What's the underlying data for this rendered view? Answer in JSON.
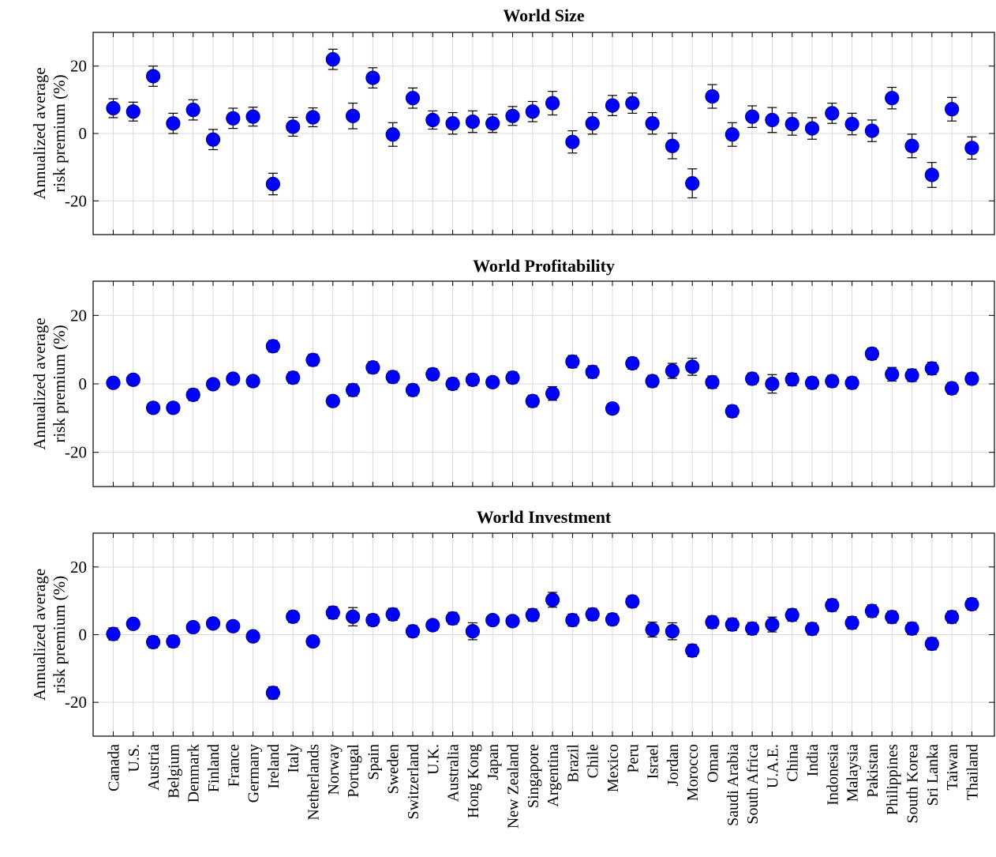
{
  "chart_data": [
    {
      "type": "scatter",
      "title": "World Size",
      "ylabel_line1": "Annualized average",
      "ylabel_line2": "risk premium (%)",
      "ylim": [
        -30,
        30
      ],
      "yticks": [
        -20,
        0,
        20
      ],
      "grid": true,
      "categories": [
        "Canada",
        "U.S.",
        "Austria",
        "Belgium",
        "Denmark",
        "Finland",
        "France",
        "Germany",
        "Ireland",
        "Italy",
        "Netherlands",
        "Norway",
        "Portugal",
        "Spain",
        "Sweden",
        "Switzerland",
        "U.K.",
        "Australia",
        "Hong Kong",
        "Japan",
        "New Zealand",
        "Singapore",
        "Argentina",
        "Brazil",
        "Chile",
        "Mexico",
        "Peru",
        "Israel",
        "Jordan",
        "Morocco",
        "Oman",
        "Saudi Arabia",
        "South Africa",
        "U.A.E.",
        "China",
        "India",
        "Indonesia",
        "Malaysia",
        "Pakistan",
        "Philippines",
        "South Korea",
        "Sri Lanka",
        "Taiwan",
        "Thailand"
      ],
      "values": [
        7.5,
        6.5,
        17,
        3,
        7,
        -1.8,
        4.5,
        5,
        -15,
        2,
        4.8,
        22,
        5.2,
        16.5,
        -0.3,
        10.5,
        4,
        3,
        3.5,
        3,
        5.2,
        6.5,
        9,
        -2.5,
        3,
        8.3,
        9,
        3,
        -3.7,
        -14.8,
        11,
        -0.3,
        5,
        4,
        2.8,
        1.5,
        6,
        2.8,
        0.8,
        10.5,
        -3.7,
        -12.3,
        7.2,
        -4.3
      ],
      "errors": [
        2.8,
        2.8,
        3,
        3,
        3,
        3,
        3,
        2.8,
        3.2,
        2.8,
        2.8,
        3,
        3.8,
        3,
        3.5,
        3,
        2.7,
        3.2,
        3.2,
        2.7,
        2.8,
        3,
        3.5,
        3.3,
        3.2,
        3,
        3,
        3.2,
        3.8,
        4.3,
        3.5,
        3.5,
        3.2,
        3.7,
        3.3,
        3.2,
        3,
        3.2,
        3.2,
        3.2,
        3.5,
        3.7,
        3.5,
        3.3
      ]
    },
    {
      "type": "scatter",
      "title": "World Profitability",
      "ylabel_line1": "Annualized average",
      "ylabel_line2": "risk premium (%)",
      "ylim": [
        -30,
        30
      ],
      "yticks": [
        -20,
        0,
        20
      ],
      "grid": true,
      "categories": [
        "Canada",
        "U.S.",
        "Austria",
        "Belgium",
        "Denmark",
        "Finland",
        "France",
        "Germany",
        "Ireland",
        "Italy",
        "Netherlands",
        "Norway",
        "Portugal",
        "Spain",
        "Sweden",
        "Switzerland",
        "U.K.",
        "Australia",
        "Hong Kong",
        "Japan",
        "New Zealand",
        "Singapore",
        "Argentina",
        "Brazil",
        "Chile",
        "Mexico",
        "Peru",
        "Israel",
        "Jordan",
        "Morocco",
        "Oman",
        "Saudi Arabia",
        "South Africa",
        "U.A.E.",
        "China",
        "India",
        "Indonesia",
        "Malaysia",
        "Pakistan",
        "Philippines",
        "South Korea",
        "Sri Lanka",
        "Taiwan",
        "Thailand"
      ],
      "values": [
        0.3,
        1.2,
        -7,
        -7,
        -3.2,
        -0.1,
        1.5,
        0.8,
        11,
        1.8,
        7,
        -5,
        -1.8,
        4.8,
        2,
        -1.8,
        2.8,
        0,
        1.2,
        0.5,
        1.8,
        -5,
        -2.8,
        6.5,
        3.5,
        -7.2,
        6,
        0.8,
        3.8,
        5,
        0.5,
        -8,
        1.5,
        0,
        1.3,
        0.3,
        0.8,
        0.3,
        8.8,
        2.8,
        2.5,
        4.5,
        -1.3,
        1.5
      ],
      "errors": [
        1.5,
        1.5,
        1.5,
        1.5,
        1.7,
        1.5,
        1.5,
        1.5,
        1.7,
        1.7,
        1.7,
        1.5,
        1.8,
        1.7,
        1.7,
        1.7,
        1.7,
        1.7,
        1.7,
        1.5,
        1.7,
        1.7,
        2,
        1.8,
        1.8,
        1.5,
        1.7,
        1.7,
        2.2,
        2.5,
        1.8,
        1.7,
        1.7,
        2.7,
        1.8,
        1.7,
        1.7,
        1.7,
        1.7,
        2,
        1.8,
        1.8,
        1.7,
        1.7
      ]
    },
    {
      "type": "scatter",
      "title": "World Investment",
      "ylabel_line1": "Annualized average",
      "ylabel_line2": "risk premium (%)",
      "ylim": [
        -30,
        30
      ],
      "yticks": [
        -20,
        0,
        20
      ],
      "grid": true,
      "categories": [
        "Canada",
        "U.S.",
        "Austria",
        "Belgium",
        "Denmark",
        "Finland",
        "France",
        "Germany",
        "Ireland",
        "Italy",
        "Netherlands",
        "Norway",
        "Portugal",
        "Spain",
        "Sweden",
        "Switzerland",
        "U.K.",
        "Australia",
        "Hong Kong",
        "Japan",
        "New Zealand",
        "Singapore",
        "Argentina",
        "Brazil",
        "Chile",
        "Mexico",
        "Peru",
        "Israel",
        "Jordan",
        "Morocco",
        "Oman",
        "Saudi Arabia",
        "South Africa",
        "U.A.E.",
        "China",
        "India",
        "Indonesia",
        "Malaysia",
        "Pakistan",
        "Philippines",
        "South Korea",
        "Sri Lanka",
        "Taiwan",
        "Thailand"
      ],
      "values": [
        0.2,
        3.2,
        -2.2,
        -2,
        2.2,
        3.3,
        2.5,
        -0.5,
        -17.2,
        5.3,
        -2,
        6.5,
        5.3,
        4.3,
        6,
        1,
        2.8,
        4.8,
        1,
        4.3,
        4,
        5.8,
        10.3,
        4.3,
        6,
        4.5,
        9.8,
        1.5,
        1,
        -4.7,
        3.7,
        3,
        1.8,
        3,
        5.8,
        1.7,
        8.7,
        3.5,
        7,
        5.2,
        1.8,
        -2.7,
        5.2,
        9
      ]
    },
    {
      "errors_note": ""
    }
  ]
}
